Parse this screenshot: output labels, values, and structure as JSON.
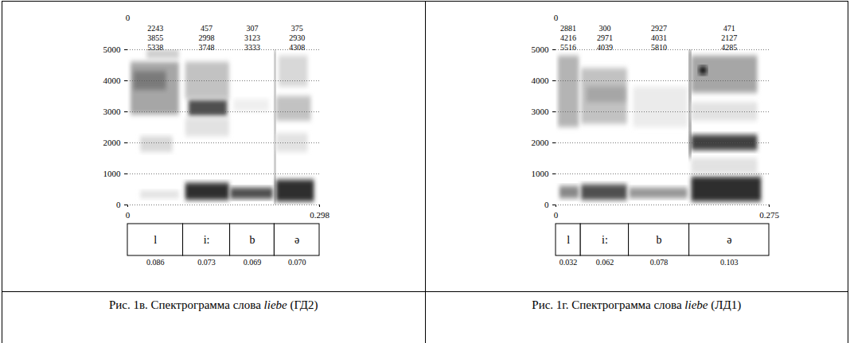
{
  "chart_data": [
    {
      "type": "spectrogram",
      "caption": [
        "Рис. 1в. Спектрограмма слова ",
        "liebe",
        " (ГД2)"
      ],
      "xlim": [
        0,
        0.298
      ],
      "xticks": [
        0,
        0.298
      ],
      "top_xticks": [
        0
      ],
      "ylim": [
        0,
        5000
      ],
      "yticks": [
        0,
        1000,
        2000,
        3000,
        4000,
        5000
      ],
      "grid": true,
      "segments": {
        "labels": [
          "l",
          "i:",
          "b",
          "ə"
        ],
        "durations": [
          0.086,
          0.073,
          0.069,
          0.07
        ],
        "duration_labels": [
          "0.086",
          "0.073",
          "0.069",
          "0.070"
        ],
        "formants": [
          [
            2243,
            3855,
            5338
          ],
          [
            457,
            2998,
            3748
          ],
          [
            307,
            3123,
            3333
          ],
          [
            375,
            2930,
            4308
          ]
        ]
      },
      "cells": [
        {
          "t0": 0.005,
          "t1": 0.08,
          "f0": 2900,
          "f1": 4600,
          "level": 0.45
        },
        {
          "t0": 0.01,
          "t1": 0.06,
          "f0": 3700,
          "f1": 4300,
          "level": 0.6
        },
        {
          "t0": 0.02,
          "t1": 0.07,
          "f0": 1700,
          "f1": 2200,
          "level": 0.25
        },
        {
          "t0": 0.02,
          "t1": 0.08,
          "f0": 200,
          "f1": 450,
          "level": 0.2
        },
        {
          "t0": 0.03,
          "t1": 0.08,
          "f0": 4700,
          "f1": 5000,
          "level": 0.3
        },
        {
          "t0": 0.09,
          "t1": 0.158,
          "f0": 150,
          "f1": 700,
          "level": 0.85
        },
        {
          "t0": 0.095,
          "t1": 0.155,
          "f0": 2850,
          "f1": 3400,
          "level": 0.75
        },
        {
          "t0": 0.09,
          "t1": 0.158,
          "f0": 3400,
          "f1": 4600,
          "level": 0.35
        },
        {
          "t0": 0.09,
          "t1": 0.158,
          "f0": 2200,
          "f1": 2800,
          "level": 0.2
        },
        {
          "t0": 0.16,
          "t1": 0.226,
          "f0": 180,
          "f1": 550,
          "level": 0.75
        },
        {
          "t0": 0.165,
          "t1": 0.22,
          "f0": 3000,
          "f1": 3400,
          "level": 0.12
        },
        {
          "t0": 0.2285,
          "t1": 0.2305,
          "f0": 0,
          "f1": 5000,
          "level": 0.85
        },
        {
          "t0": 0.231,
          "t1": 0.29,
          "f0": 100,
          "f1": 800,
          "level": 0.85
        },
        {
          "t0": 0.231,
          "t1": 0.285,
          "f0": 2700,
          "f1": 3500,
          "level": 0.35
        },
        {
          "t0": 0.231,
          "t1": 0.28,
          "f0": 1700,
          "f1": 2300,
          "level": 0.2
        },
        {
          "t0": 0.235,
          "t1": 0.28,
          "f0": 3800,
          "f1": 4800,
          "level": 0.25
        }
      ]
    },
    {
      "type": "spectrogram",
      "caption": [
        "Рис. 1г. Спектрограмма слова ",
        "liebe",
        " (ЛД1)"
      ],
      "xlim": [
        0,
        0.275
      ],
      "xticks": [
        0,
        0.275
      ],
      "top_xticks": [
        0
      ],
      "ylim": [
        0,
        5000
      ],
      "yticks": [
        0,
        1000,
        2000,
        3000,
        4000,
        5000
      ],
      "grid": true,
      "segments": {
        "labels": [
          "l",
          "i:",
          "b",
          "ə"
        ],
        "durations": [
          0.032,
          0.062,
          0.078,
          0.103
        ],
        "duration_labels": [
          "0.032",
          "0.062",
          "0.078",
          "0.103"
        ],
        "formants": [
          [
            2881,
            4216,
            5516
          ],
          [
            300,
            2971,
            4039
          ],
          [
            2927,
            4031,
            5810
          ],
          [
            471,
            2127,
            4285
          ]
        ]
      },
      "cells": [
        {
          "t0": 0.003,
          "t1": 0.03,
          "f0": 2500,
          "f1": 4800,
          "level": 0.4
        },
        {
          "t0": 0.005,
          "t1": 0.03,
          "f0": 200,
          "f1": 600,
          "level": 0.55
        },
        {
          "t0": 0.033,
          "t1": 0.092,
          "f0": 150,
          "f1": 650,
          "level": 0.75
        },
        {
          "t0": 0.033,
          "t1": 0.092,
          "f0": 2600,
          "f1": 4400,
          "level": 0.35
        },
        {
          "t0": 0.04,
          "t1": 0.09,
          "f0": 3300,
          "f1": 3800,
          "level": 0.45
        },
        {
          "t0": 0.095,
          "t1": 0.17,
          "f0": 200,
          "f1": 550,
          "level": 0.5
        },
        {
          "t0": 0.1,
          "t1": 0.17,
          "f0": 2500,
          "f1": 3800,
          "level": 0.15
        },
        {
          "t0": 0.172,
          "t1": 0.1745,
          "f0": 1500,
          "f1": 5000,
          "level": 0.85
        },
        {
          "t0": 0.175,
          "t1": 0.26,
          "f0": 1750,
          "f1": 2250,
          "level": 0.8
        },
        {
          "t0": 0.175,
          "t1": 0.265,
          "f0": 100,
          "f1": 900,
          "level": 0.85
        },
        {
          "t0": 0.175,
          "t1": 0.26,
          "f0": 3600,
          "f1": 4800,
          "level": 0.45
        },
        {
          "t0": 0.185,
          "t1": 0.195,
          "f0": 4200,
          "f1": 4450,
          "level": 0.95
        },
        {
          "t0": 0.175,
          "t1": 0.26,
          "f0": 2700,
          "f1": 3300,
          "level": 0.2
        },
        {
          "t0": 0.175,
          "t1": 0.26,
          "f0": 1000,
          "f1": 1500,
          "level": 0.2
        }
      ]
    }
  ]
}
